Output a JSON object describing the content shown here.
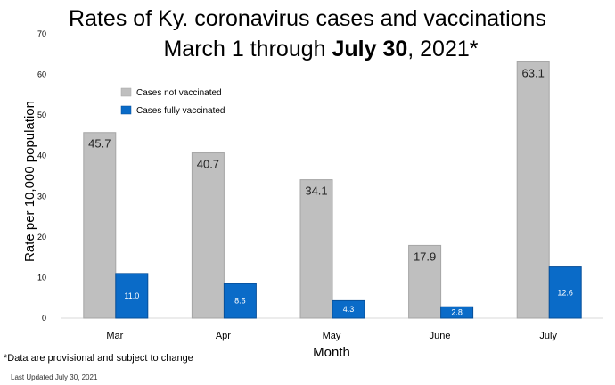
{
  "title_line1": "Rates of Ky. coronavirus cases and vaccinations",
  "title_line2_prefix": "March 1 through ",
  "title_line2_bold": "July 30",
  "title_line2_suffix": ", 2021*",
  "footnote": "*Data are provisional and subject to change",
  "last_updated": "Last Updated July 30, 2021",
  "chart_data": {
    "type": "bar",
    "categories": [
      "Mar",
      "Apr",
      "May",
      "June",
      "July"
    ],
    "series": [
      {
        "name": "Cases not vaccinated",
        "color": "#bfbfbf",
        "values": [
          45.7,
          40.7,
          34.1,
          17.9,
          63.1
        ],
        "labels": [
          "45.7",
          "40.7",
          "34.1",
          "17.9",
          "63.1"
        ]
      },
      {
        "name": "Cases fully vaccinated",
        "color": "#0a6bc8",
        "values": [
          11.0,
          8.5,
          4.3,
          2.8,
          12.6
        ],
        "labels": [
          "11.0",
          "8.5",
          "4.3",
          "2.8",
          "12.6"
        ]
      }
    ],
    "xlabel": "Month",
    "ylabel": "Rate per 10,000 population",
    "ylim": [
      0,
      70
    ],
    "yticks": [
      "0",
      "10",
      "20",
      "30",
      "40",
      "50",
      "60",
      "70"
    ],
    "legend_position": "top-left",
    "grid": false
  }
}
